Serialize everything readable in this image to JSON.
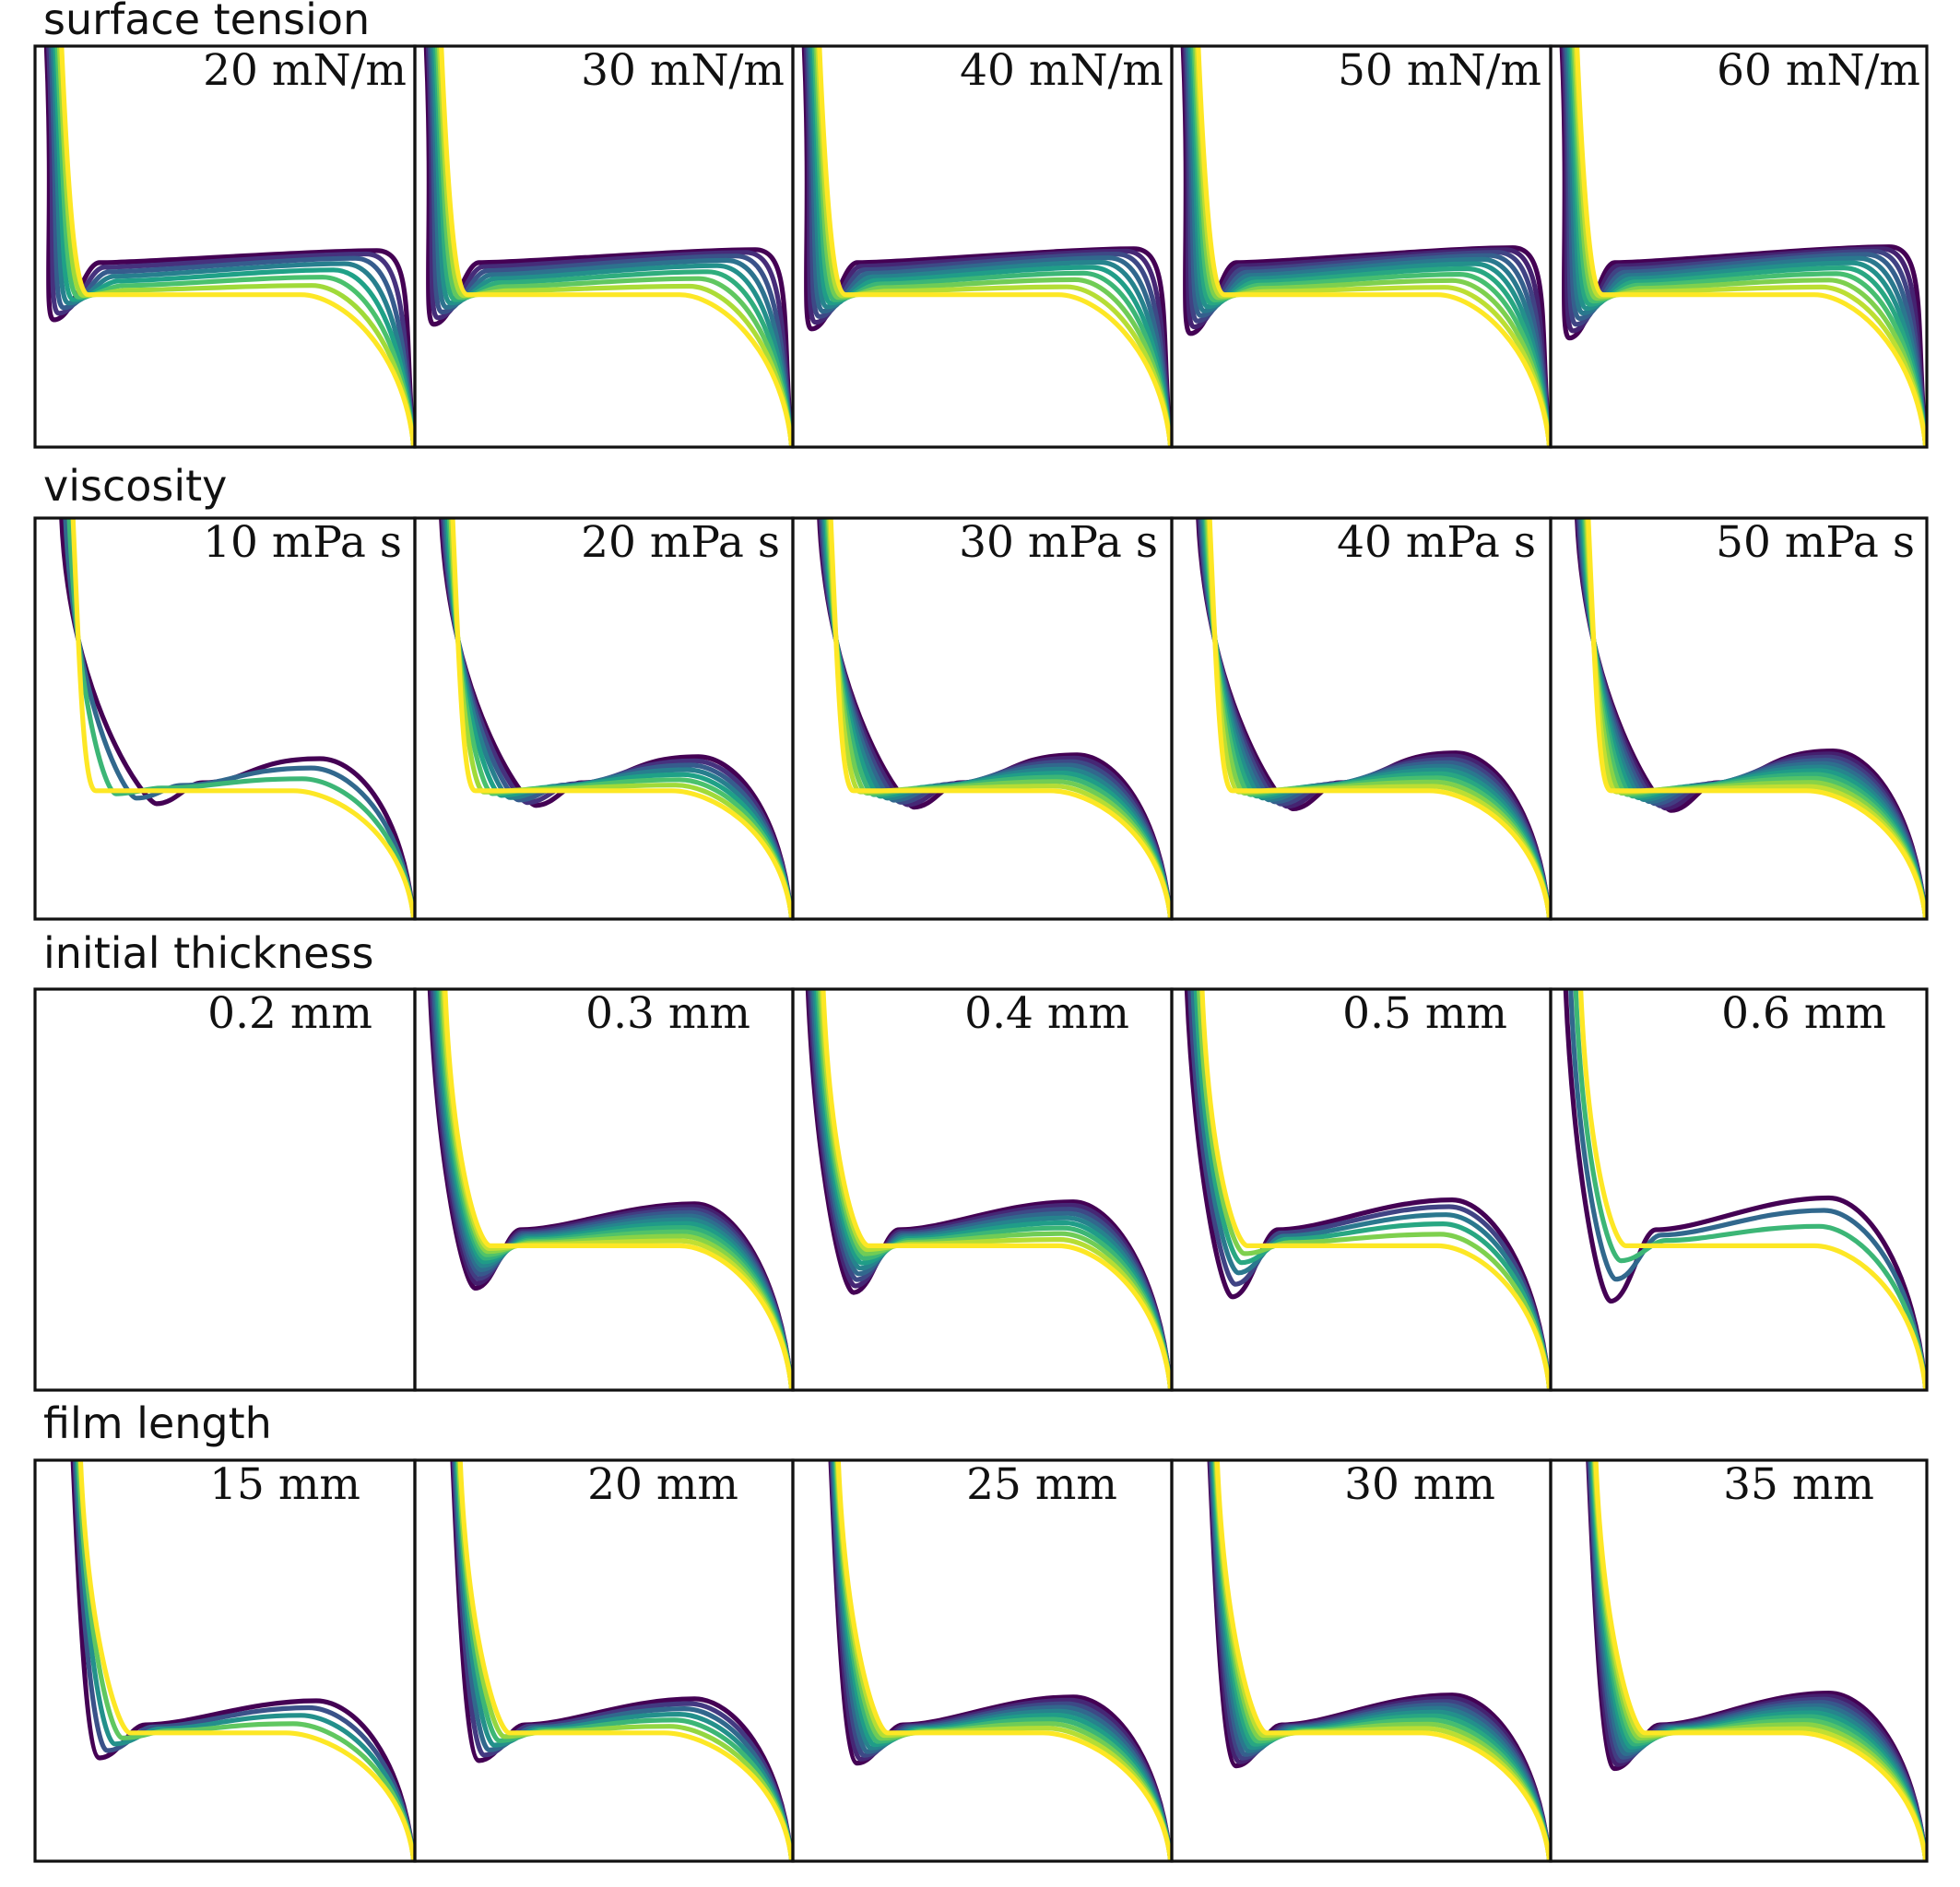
{
  "figure": {
    "rows": [
      {
        "title": "surface tension",
        "panels": [
          {
            "label": "20 mN/m",
            "curves": 8
          },
          {
            "label": "30 mN/m",
            "curves": 9
          },
          {
            "label": "40 mN/m",
            "curves": 10
          },
          {
            "label": "50 mN/m",
            "curves": 11
          },
          {
            "label": "60 mN/m",
            "curves": 11
          }
        ]
      },
      {
        "title": "viscosity",
        "panels": [
          {
            "label": "10 mPa s",
            "curves": 4
          },
          {
            "label": "20 mPa s",
            "curves": 8
          },
          {
            "label": "30 mPa s",
            "curves": 10
          },
          {
            "label": "40 mPa s",
            "curves": 11
          },
          {
            "label": "50 mPa s",
            "curves": 12
          }
        ]
      },
      {
        "title": "initial thickness",
        "panels": [
          {
            "label": "0.2 mm",
            "curves": 0
          },
          {
            "label": "0.3 mm",
            "curves": 12
          },
          {
            "label": "0.4 mm",
            "curves": 10
          },
          {
            "label": "0.5 mm",
            "curves": 6
          },
          {
            "label": "0.6 mm",
            "curves": 4
          }
        ]
      },
      {
        "title": "film length",
        "panels": [
          {
            "label": "15 mm",
            "curves": 5
          },
          {
            "label": "20 mm",
            "curves": 7
          },
          {
            "label": "25 mm",
            "curves": 10
          },
          {
            "label": "30 mm",
            "curves": 11
          },
          {
            "label": "35 mm",
            "curves": 12
          }
        ]
      }
    ]
  },
  "chart_data": {
    "type": "line",
    "colormap": "viridis",
    "colormap_stops": [
      "#440154",
      "#46327e",
      "#365c8d",
      "#277f8e",
      "#1fa187",
      "#4ac16d",
      "#a0da39",
      "#fde725"
    ],
    "axes_visible": false,
    "tick_labels": false,
    "grid": false,
    "panels": [
      {
        "row": "surface tension",
        "label": "20 mN/m",
        "curves": 8
      },
      {
        "row": "surface tension",
        "label": "30 mN/m",
        "curves": 9
      },
      {
        "row": "surface tension",
        "label": "40 mN/m",
        "curves": 10
      },
      {
        "row": "surface tension",
        "label": "50 mN/m",
        "curves": 11
      },
      {
        "row": "surface tension",
        "label": "60 mN/m",
        "curves": 11
      },
      {
        "row": "viscosity",
        "label": "10 mPa s",
        "curves": 4
      },
      {
        "row": "viscosity",
        "label": "20 mPa s",
        "curves": 8
      },
      {
        "row": "viscosity",
        "label": "30 mPa s",
        "curves": 10
      },
      {
        "row": "viscosity",
        "label": "40 mPa s",
        "curves": 11
      },
      {
        "row": "viscosity",
        "label": "50 mPa s",
        "curves": 12
      },
      {
        "row": "initial thickness",
        "label": "0.2 mm",
        "curves": 0
      },
      {
        "row": "initial thickness",
        "label": "0.3 mm",
        "curves": 12
      },
      {
        "row": "initial thickness",
        "label": "0.4 mm",
        "curves": 10
      },
      {
        "row": "initial thickness",
        "label": "0.5 mm",
        "curves": 6
      },
      {
        "row": "initial thickness",
        "label": "0.6 mm",
        "curves": 4
      },
      {
        "row": "film length",
        "label": "15 mm",
        "curves": 5
      },
      {
        "row": "film length",
        "label": "20 mm",
        "curves": 7
      },
      {
        "row": "film length",
        "label": "25 mm",
        "curves": 10
      },
      {
        "row": "film length",
        "label": "30 mm",
        "curves": 11
      },
      {
        "row": "film length",
        "label": "35 mm",
        "curves": 12
      }
    ]
  }
}
